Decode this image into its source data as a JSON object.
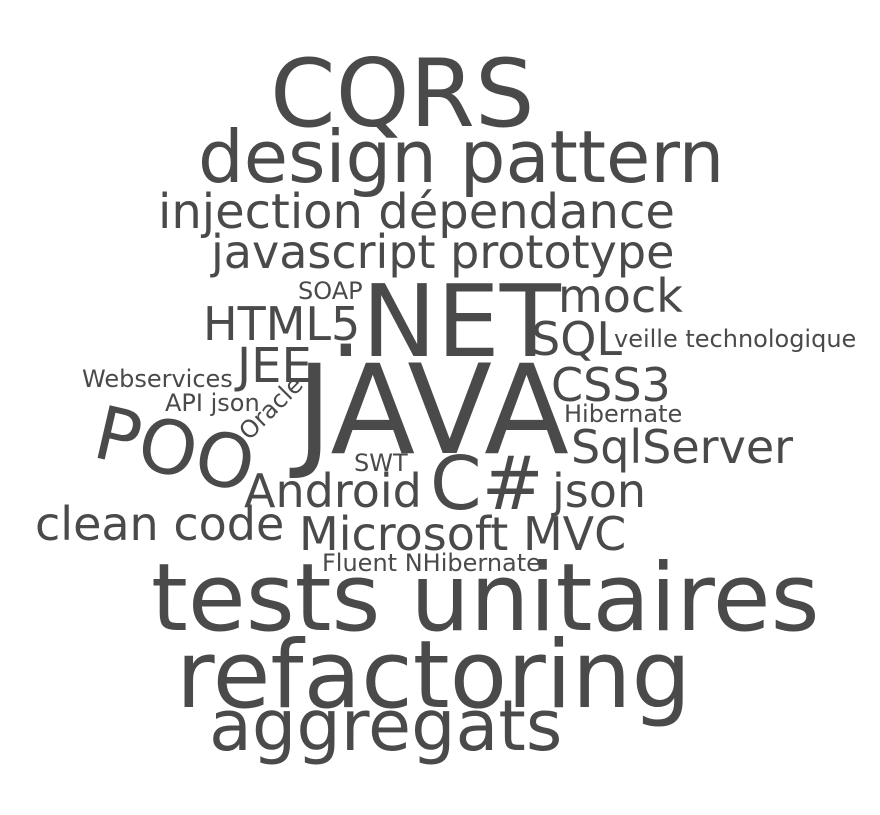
{
  "cloud": {
    "text_color": "#4a4a4a",
    "background": "#ffffff",
    "words": {
      "cqrs": "CQRS",
      "design_pattern": "design pattern",
      "injection_dependance": "injection dépendance",
      "javascript_prototype": "javascript prototype",
      "soap": "SOAP",
      "net": ".NET",
      "mock": "mock",
      "html5": "HTML5",
      "sql": "SQL",
      "veille_technologique": "veille technologique",
      "jee": "JEE",
      "webservices": "Webservices",
      "java": "JAVA",
      "css3": "CSS3",
      "api_json": "API json",
      "oracle": "Oracle",
      "hibernate": "Hibernate",
      "poo": "POO",
      "sqlserver": "SqlServer",
      "swt": "SWT",
      "csharp": "C#",
      "android": "Android",
      "json": "json",
      "clean_code": "clean code",
      "microsoft_mvc": "Microsoft MVC",
      "fluent_nhibernate": "Fluent NHibernate",
      "tests_unitaires": "tests unitaires",
      "refactoring": "refactoring",
      "aggregats": "aggregats"
    }
  }
}
